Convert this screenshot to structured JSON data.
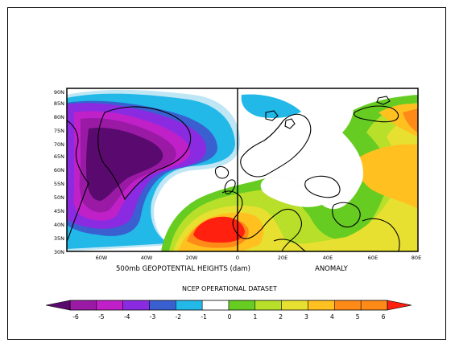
{
  "map": {
    "lat_labels": [
      "90N",
      "85N",
      "80N",
      "75N",
      "70N",
      "65N",
      "60N",
      "55N",
      "50N",
      "45N",
      "40N",
      "35N",
      "30N"
    ],
    "lon_labels": [
      "60W",
      "40W",
      "20W",
      "0",
      "20E",
      "40E",
      "60E",
      "80E"
    ],
    "caption_left": "500mb GEOPOTENTIAL HEIGHTS (dam)",
    "caption_right": "ANOMALY",
    "dataset_title": "NCEP OPERATIONAL DATASET"
  },
  "colorbar": {
    "labels": [
      "-6",
      "-5",
      "-4",
      "-3",
      "-2",
      "-1",
      "0",
      "1",
      "2",
      "3",
      "4",
      "5",
      "6"
    ],
    "colors": [
      "#5a0a6e",
      "#9a1aa6",
      "#c020c8",
      "#8a2be2",
      "#3a5fd0",
      "#22b8e8",
      "#ffffff",
      "#66cc22",
      "#b8e02a",
      "#e8e030",
      "#ffc020",
      "#ff8a18",
      "#ff2010"
    ]
  }
}
